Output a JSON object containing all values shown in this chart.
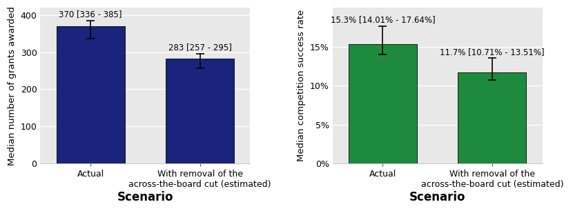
{
  "left_chart": {
    "categories": [
      "Actual",
      "With removal of the\nacross-the-board cut (estimated)"
    ],
    "values": [
      370,
      283
    ],
    "ci_low": [
      336,
      257
    ],
    "ci_high": [
      385,
      295
    ],
    "bar_color": "#1a237e",
    "ylabel": "Median number of grants awarded",
    "xlabel": "Scenario",
    "ylim": [
      0,
      420
    ],
    "yticks": [
      0,
      100,
      200,
      300,
      400
    ],
    "labels": [
      "370 [336 - 385]",
      "283 [257 - 295]"
    ]
  },
  "right_chart": {
    "categories": [
      "Actual",
      "With removal of the\nacross-the-board cut (estimated)"
    ],
    "values": [
      0.153,
      0.117
    ],
    "ci_low": [
      0.1401,
      0.1071
    ],
    "ci_high": [
      0.1764,
      0.1351
    ],
    "bar_color": "#1e8a3e",
    "ylabel": "Median competition success rate",
    "xlabel": "Scenario",
    "ylim": [
      0,
      0.2
    ],
    "yticks": [
      0.0,
      0.05,
      0.1,
      0.15
    ],
    "labels": [
      "15.3% [14.01% - 17.64%]",
      "11.7% [10.71% - 13.51%]"
    ]
  },
  "plot_bg_color": "#e8e8e8",
  "outer_bg_color": "#ffffff",
  "bar_edge_color": "#000000",
  "errorbar_color": "#000000",
  "label_fontsize": 8.5,
  "axis_label_fontsize": 9.5,
  "tick_fontsize": 9,
  "xlabel_fontsize": 12
}
